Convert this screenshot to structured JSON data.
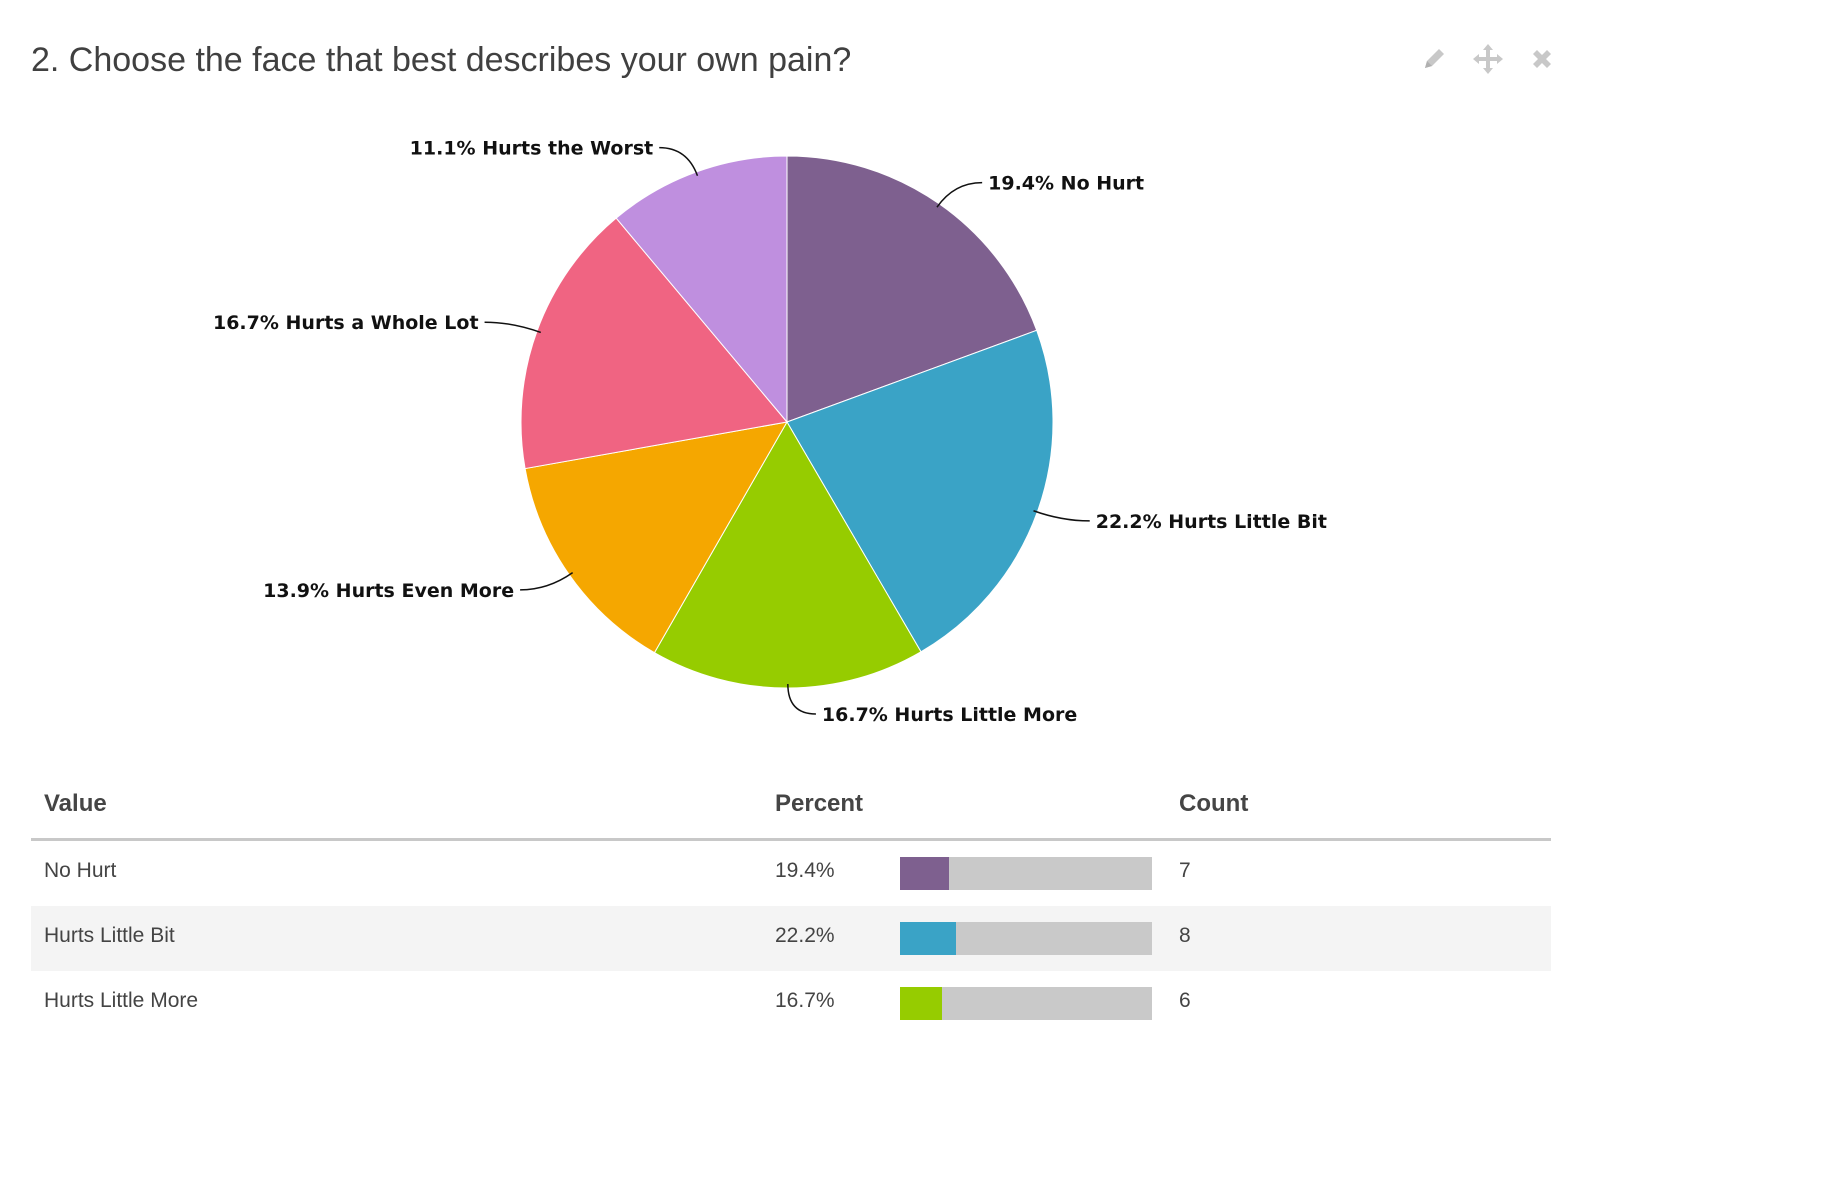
{
  "question": {
    "title": "2. Choose the face that best describes your own pain?"
  },
  "toolbar": {
    "icons": [
      "pencil-icon",
      "move-icon",
      "close-icon"
    ]
  },
  "chart_data": {
    "type": "pie",
    "title": "",
    "slices": [
      {
        "label": "No Hurt",
        "value": 19.4,
        "display": "19.4% No Hurt",
        "color": "#7e608f"
      },
      {
        "label": "Hurts Little Bit",
        "value": 22.2,
        "display": "22.2% Hurts Little Bit",
        "color": "#3aa3c6"
      },
      {
        "label": "Hurts Little More",
        "value": 16.7,
        "display": "16.7% Hurts Little More",
        "color": "#96cc00"
      },
      {
        "label": "Hurts Even More",
        "value": 13.9,
        "display": "13.9% Hurts Even More",
        "color": "#f5a700"
      },
      {
        "label": "Hurts a Whole Lot",
        "value": 16.7,
        "display": "16.7% Hurts a Whole Lot",
        "color": "#f06482"
      },
      {
        "label": "Hurts the Worst",
        "value": 11.1,
        "display": "11.1% Hurts the Worst",
        "color": "#bf8fdf"
      }
    ]
  },
  "table": {
    "headers": {
      "value": "Value",
      "percent": "Percent",
      "count": "Count"
    },
    "rows": [
      {
        "value": "No Hurt",
        "percent": "19.4%",
        "fraction": 0.194,
        "count": "7",
        "color": "#7e608f"
      },
      {
        "value": "Hurts Little Bit",
        "percent": "22.2%",
        "fraction": 0.222,
        "count": "8",
        "color": "#3aa3c6"
      },
      {
        "value": "Hurts Little More",
        "percent": "16.7%",
        "fraction": 0.167,
        "count": "6",
        "color": "#96cc00"
      }
    ]
  }
}
